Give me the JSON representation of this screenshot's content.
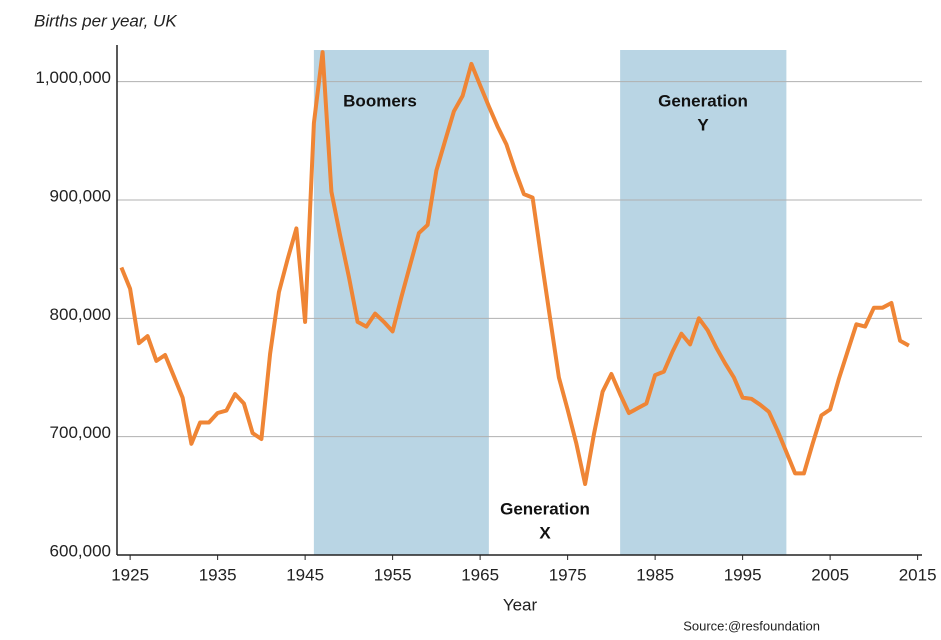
{
  "chart_data": {
    "type": "line",
    "title": "Births per year, UK",
    "xlabel": "Year",
    "source": "Source:@resfoundation",
    "x": [
      1924,
      1925,
      1926,
      1927,
      1928,
      1929,
      1930,
      1931,
      1932,
      1933,
      1934,
      1935,
      1936,
      1937,
      1938,
      1939,
      1940,
      1941,
      1942,
      1943,
      1944,
      1945,
      1946,
      1947,
      1948,
      1949,
      1950,
      1951,
      1952,
      1953,
      1954,
      1955,
      1956,
      1957,
      1958,
      1959,
      1960,
      1961,
      1962,
      1963,
      1964,
      1965,
      1966,
      1967,
      1968,
      1969,
      1970,
      1971,
      1972,
      1973,
      1974,
      1975,
      1976,
      1977,
      1978,
      1979,
      1980,
      1981,
      1982,
      1983,
      1984,
      1985,
      1986,
      1987,
      1988,
      1989,
      1990,
      1991,
      1992,
      1993,
      1994,
      1995,
      1996,
      1997,
      1998,
      1999,
      2000,
      2001,
      2002,
      2003,
      2004,
      2005,
      2006,
      2007,
      2008,
      2009,
      2010,
      2011,
      2012,
      2013,
      2014
    ],
    "series": [
      {
        "name": "Births",
        "color": "#ef8535",
        "values": [
          843000,
          825000,
          779000,
          785000,
          764000,
          769000,
          751000,
          733000,
          694000,
          712000,
          712000,
          720000,
          722000,
          736000,
          728000,
          703000,
          698000,
          770000,
          822000,
          850000,
          876000,
          797000,
          965000,
          1025000,
          907000,
          870000,
          835000,
          797000,
          793000,
          804000,
          797000,
          789000,
          818000,
          845000,
          872000,
          879000,
          925000,
          950000,
          975000,
          988000,
          1015000,
          997000,
          979000,
          962000,
          947000,
          925000,
          905000,
          902000,
          850000,
          800000,
          750000,
          723000,
          694000,
          660000,
          702000,
          738000,
          753000,
          736000,
          720000,
          724000,
          728000,
          752000,
          755000,
          772000,
          787000,
          778000,
          800000,
          790000,
          775000,
          762000,
          750000,
          733000,
          732000,
          727000,
          721000,
          705000,
          687000,
          669000,
          669000,
          694000,
          718000,
          723000,
          749000,
          772000,
          795000,
          793000,
          809000,
          809000,
          813000,
          781000,
          777000
        ]
      }
    ],
    "xlim": [
      1923.5,
      2015.5
    ],
    "xticks": [
      1925,
      1935,
      1945,
      1955,
      1965,
      1975,
      1985,
      1995,
      2005,
      2015
    ],
    "ylim": [
      600000,
      1031000
    ],
    "yticks": [
      {
        "value": 600000,
        "label": "600,000"
      },
      {
        "value": 700000,
        "label": "700,000"
      },
      {
        "value": 800000,
        "label": "800,000"
      },
      {
        "value": 900000,
        "label": "900,000"
      },
      {
        "value": 1000000,
        "label": "1,000,000"
      }
    ],
    "grid": true,
    "bands": [
      {
        "start": 1946,
        "end": 1966,
        "color": "#b9d5e4"
      },
      {
        "start": 1981,
        "end": 2000,
        "color": "#b9d5e4"
      }
    ],
    "annotations": [
      {
        "lines": [
          "Boomers"
        ]
      },
      {
        "lines": [
          "Generation",
          "X"
        ]
      },
      {
        "lines": [
          "Generation",
          "Y"
        ]
      }
    ]
  }
}
